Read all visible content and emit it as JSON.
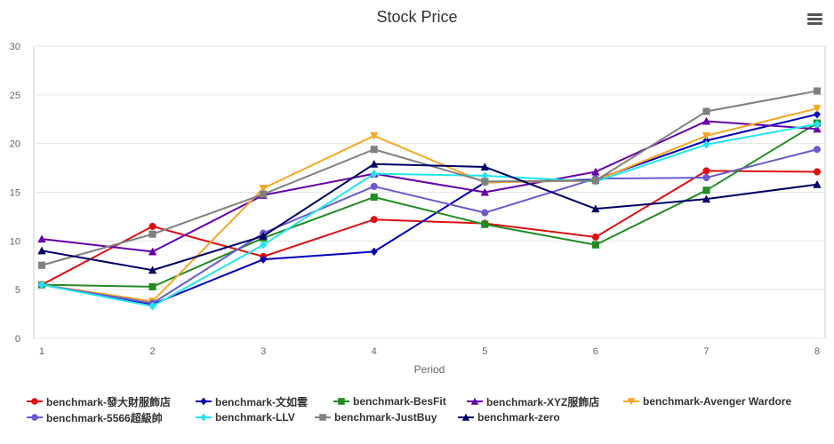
{
  "chart_data": {
    "type": "line",
    "title": "Stock Price",
    "xlabel": "Period",
    "ylabel": "",
    "x": [
      1,
      2,
      3,
      4,
      5,
      6,
      7,
      8
    ],
    "ylim": [
      0,
      30
    ],
    "yticks": [
      0,
      5,
      10,
      15,
      20,
      25,
      30
    ],
    "grid": true,
    "legend": "bottom",
    "series": [
      {
        "name": "benchmark-發大財服飾店",
        "color": "#dd1111",
        "marker": "circle",
        "values": [
          5.5,
          11.5,
          8.4,
          12.2,
          11.8,
          10.4,
          17.2,
          17.1
        ]
      },
      {
        "name": "benchmark-文如雲",
        "color": "#0000bb",
        "marker": "diamond",
        "values": [
          5.5,
          3.5,
          8.1,
          8.9,
          16.0,
          16.3,
          20.3,
          23.0
        ]
      },
      {
        "name": "benchmark-BesFit",
        "color": "#228b22",
        "marker": "square",
        "values": [
          5.5,
          5.3,
          10.3,
          14.5,
          11.7,
          9.6,
          15.2,
          22.1
        ]
      },
      {
        "name": "benchmark-XYZ服飾店",
        "color": "#6600aa",
        "marker": "triangle",
        "values": [
          10.2,
          8.9,
          14.7,
          16.9,
          15.0,
          17.1,
          22.3,
          21.5
        ]
      },
      {
        "name": "benchmark-Avenger Wardore",
        "color": "#f5a623",
        "marker": "triangle-down",
        "values": [
          5.5,
          3.8,
          15.4,
          20.8,
          16.0,
          16.2,
          20.8,
          23.6
        ]
      },
      {
        "name": "benchmark-5566超級帥",
        "color": "#6a5acd",
        "marker": "circle",
        "values": [
          5.5,
          3.6,
          10.8,
          15.6,
          12.9,
          16.4,
          16.5,
          19.4
        ]
      },
      {
        "name": "benchmark-LLV",
        "color": "#22e5ee",
        "marker": "diamond",
        "values": [
          5.5,
          3.3,
          9.6,
          16.9,
          16.7,
          16.1,
          19.9,
          22.0
        ]
      },
      {
        "name": "benchmark-JustBuy",
        "color": "#808080",
        "marker": "square",
        "values": [
          7.5,
          10.7,
          14.8,
          19.4,
          16.1,
          16.2,
          23.3,
          25.4
        ]
      },
      {
        "name": "benchmark-zero",
        "color": "#000066",
        "marker": "triangle",
        "values": [
          9.0,
          7.0,
          10.5,
          17.9,
          17.6,
          13.3,
          14.3,
          15.8
        ]
      }
    ]
  },
  "toolbar": {
    "menu_icon": "hamburger-menu-icon"
  }
}
